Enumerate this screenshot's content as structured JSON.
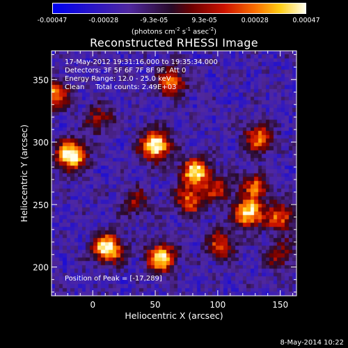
{
  "chart_data": {
    "type": "heatmap",
    "title": "Reconstructed RHESSI Image",
    "xlabel": "Heliocentric X (arcsec)",
    "ylabel": "Heliocentric Y (arcsec)",
    "xlim": [
      -33,
      163
    ],
    "ylim": [
      177,
      373
    ],
    "xticks": [
      0,
      50,
      100,
      150
    ],
    "yticks": [
      200,
      250,
      300,
      350
    ],
    "colorbar": {
      "ticks": [
        "-0.00047",
        "-0.00028",
        "-9.3e-05",
        "9.3e-05",
        "0.00028",
        "0.00047"
      ],
      "tick_values": [
        -0.00047,
        -0.00028,
        -9.3e-05,
        9.3e-05,
        0.00028,
        0.00047
      ],
      "units_main": "(photons cm",
      "units_exp1": "-2",
      "units_mid": " s",
      "units_exp2": "-1",
      "units_mid2": " asec",
      "units_exp3": "-2",
      "units_end": ")"
    },
    "annotations": {
      "time_range": "17-May-2012 19:31:16.000 to 19:35:34.000",
      "detectors": "Detectors: 3F 5F 6F 7F 8F 9F, Att 0",
      "energy": "Energy Range: 12.0 - 25.0 keV",
      "clean": "Clean     Total counts: 2.49E+03",
      "peak": "Position of Peak = [-17,289]"
    },
    "sources": [
      {
        "x": -17,
        "y": 289,
        "intensity": 1.0
      },
      {
        "x": 50,
        "y": 297,
        "intensity": 1.0
      },
      {
        "x": 12,
        "y": 215,
        "intensity": 0.97
      },
      {
        "x": 125,
        "y": 243,
        "intensity": 0.9
      },
      {
        "x": 55,
        "y": 207,
        "intensity": 0.85
      },
      {
        "x": 82,
        "y": 276,
        "intensity": 0.85
      },
      {
        "x": 78,
        "y": 253,
        "intensity": 0.6
      },
      {
        "x": 133,
        "y": 303,
        "intensity": 0.62
      },
      {
        "x": 150,
        "y": 240,
        "intensity": 0.6
      },
      {
        "x": 130,
        "y": 265,
        "intensity": 0.55
      },
      {
        "x": 103,
        "y": 218,
        "intensity": 0.55
      },
      {
        "x": -30,
        "y": 338,
        "intensity": 0.7
      },
      {
        "x": 63,
        "y": 348,
        "intensity": 0.62
      },
      {
        "x": 5,
        "y": 318,
        "intensity": 0.4
      },
      {
        "x": 35,
        "y": 252,
        "intensity": 0.35
      },
      {
        "x": 100,
        "y": 262,
        "intensity": 0.42
      },
      {
        "x": 150,
        "y": 210,
        "intensity": 0.38
      }
    ]
  },
  "date_stamp": "8-May-2014 10:22"
}
